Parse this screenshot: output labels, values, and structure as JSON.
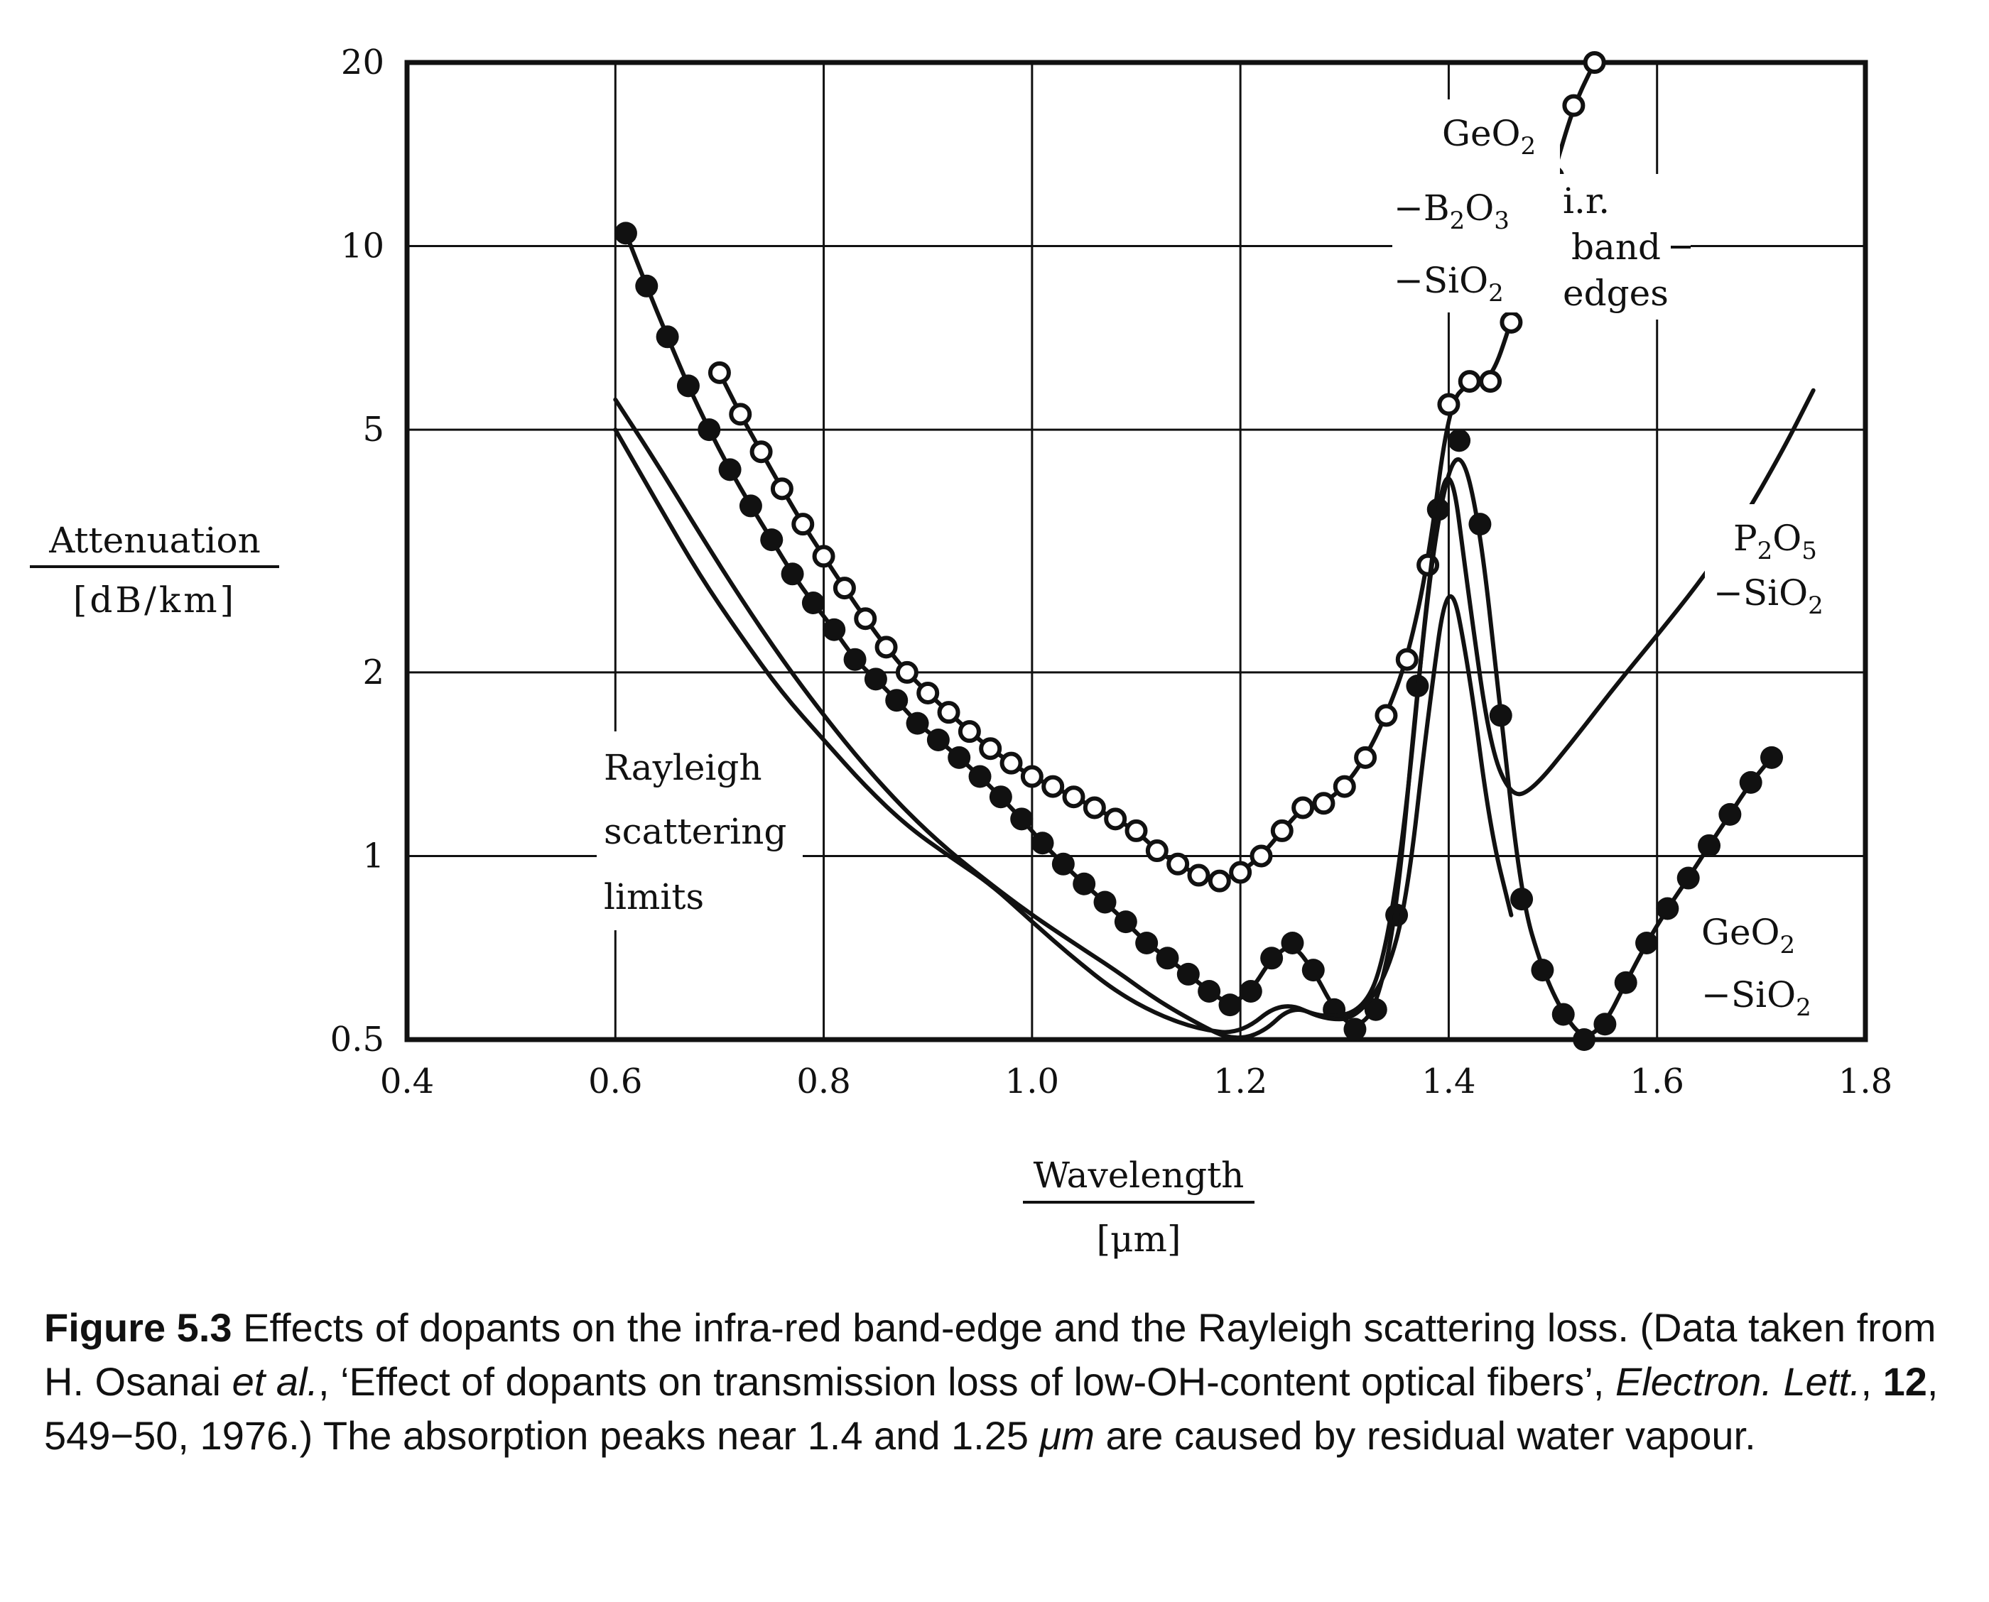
{
  "chart_data": {
    "type": "line",
    "xlabel": "Wavelength",
    "xunit": "[μm]",
    "ylabel": "Attenuation",
    "yunit": "[dB/km]",
    "xlim": [
      0.4,
      1.8
    ],
    "ylim": [
      0.5,
      20
    ],
    "yscale": "log",
    "x_ticks": [
      "0.4",
      "0.6",
      "0.8",
      "1.0",
      "1.2",
      "1.4",
      "1.6",
      "1.8"
    ],
    "y_ticks": [
      "0.5",
      "1",
      "2",
      "5",
      "10",
      "20"
    ],
    "grid": true,
    "annotations": {
      "geo2_b2o3": [
        "GeO",
        "2",
        "−B",
        "2",
        "O",
        "3",
        "−SiO",
        "2"
      ],
      "ir_band": [
        "i.r.",
        "band",
        "edges"
      ],
      "p2o5": [
        "P",
        "2",
        "O",
        "5",
        "−SiO",
        "2"
      ],
      "rayleigh": [
        "Rayleigh",
        "scattering",
        "limits"
      ],
      "geo2_sio2": [
        "GeO",
        "2",
        "−SiO",
        "2"
      ]
    },
    "series": [
      {
        "marker": "open-circle",
        "x": [
          0.7,
          0.72,
          0.74,
          0.76,
          0.78,
          0.8,
          0.82,
          0.84,
          0.86,
          0.88,
          0.9,
          0.92,
          0.94,
          0.96,
          0.98,
          1.0,
          1.02,
          1.04,
          1.06,
          1.08,
          1.1,
          1.12,
          1.14,
          1.16,
          1.18,
          1.2,
          1.22,
          1.24,
          1.26,
          1.28,
          1.3,
          1.32,
          1.34,
          1.36,
          1.38,
          1.4,
          1.42,
          1.44,
          1.46,
          1.48,
          1.5,
          1.52,
          1.54
        ],
        "y": [
          6.2,
          5.3,
          4.6,
          4.0,
          3.5,
          3.1,
          2.75,
          2.45,
          2.2,
          2.0,
          1.85,
          1.72,
          1.6,
          1.5,
          1.42,
          1.35,
          1.3,
          1.25,
          1.2,
          1.15,
          1.1,
          1.02,
          0.97,
          0.93,
          0.91,
          0.94,
          1.0,
          1.1,
          1.2,
          1.22,
          1.3,
          1.45,
          1.7,
          2.1,
          3.0,
          5.5,
          6.0,
          6.0,
          7.5,
          10.0,
          13.0,
          17.0,
          20.0
        ]
      },
      {
        "marker": "filled-circle",
        "x": [
          0.61,
          0.63,
          0.65,
          0.67,
          0.69,
          0.71,
          0.73,
          0.75,
          0.77,
          0.79,
          0.81,
          0.83,
          0.85,
          0.87,
          0.89,
          0.91,
          0.93,
          0.95,
          0.97,
          0.99,
          1.01,
          1.03,
          1.05,
          1.07,
          1.09,
          1.11,
          1.13,
          1.15,
          1.17,
          1.19,
          1.21,
          1.23,
          1.25,
          1.27,
          1.29,
          1.31,
          1.33,
          1.35,
          1.37,
          1.39,
          1.41,
          1.43,
          1.45,
          1.47,
          1.49,
          1.51,
          1.53,
          1.55,
          1.57,
          1.59,
          1.61,
          1.63,
          1.65,
          1.67,
          1.69,
          1.71
        ],
        "y": [
          10.5,
          8.6,
          7.1,
          5.9,
          5.0,
          4.3,
          3.75,
          3.3,
          2.9,
          2.6,
          2.35,
          2.1,
          1.95,
          1.8,
          1.65,
          1.55,
          1.45,
          1.35,
          1.25,
          1.15,
          1.05,
          0.97,
          0.9,
          0.84,
          0.78,
          0.72,
          0.68,
          0.64,
          0.6,
          0.57,
          0.6,
          0.68,
          0.72,
          0.65,
          0.56,
          0.52,
          0.56,
          0.8,
          1.9,
          3.7,
          4.8,
          3.5,
          1.7,
          0.85,
          0.65,
          0.55,
          0.5,
          0.53,
          0.62,
          0.72,
          0.82,
          0.92,
          1.04,
          1.17,
          1.32,
          1.45
        ]
      },
      {
        "marker": "none",
        "x": [
          0.6,
          0.64,
          0.68,
          0.72,
          0.76,
          0.8,
          0.84,
          0.88,
          0.92,
          0.96,
          1.0,
          1.04,
          1.08,
          1.12,
          1.16,
          1.2,
          1.24,
          1.28,
          1.32,
          1.34,
          1.36,
          1.38,
          1.4,
          1.42,
          1.44,
          1.46,
          1.48,
          1.52,
          1.56,
          1.6,
          1.64,
          1.68,
          1.72,
          1.75
        ],
        "y": [
          5.0,
          3.8,
          2.9,
          2.3,
          1.85,
          1.55,
          1.3,
          1.12,
          1.0,
          0.9,
          0.78,
          0.68,
          0.6,
          0.55,
          0.52,
          0.51,
          0.58,
          0.54,
          0.56,
          0.7,
          1.2,
          2.8,
          4.8,
          2.6,
          1.5,
          1.25,
          1.28,
          1.55,
          1.9,
          2.3,
          2.8,
          3.5,
          4.6,
          5.8
        ]
      },
      {
        "marker": "none",
        "x": [
          0.6,
          0.64,
          0.68,
          0.72,
          0.76,
          0.8,
          0.84,
          0.88,
          0.92,
          0.96,
          1.0,
          1.04,
          1.08,
          1.12,
          1.16,
          1.19,
          1.22,
          1.25,
          1.28,
          1.31,
          1.34,
          1.36,
          1.38,
          1.4,
          1.42,
          1.44,
          1.46
        ],
        "y": [
          5.6,
          4.4,
          3.4,
          2.65,
          2.1,
          1.7,
          1.4,
          1.18,
          1.02,
          0.9,
          0.8,
          0.72,
          0.65,
          0.58,
          0.53,
          0.5,
          0.51,
          0.57,
          0.54,
          0.54,
          0.63,
          0.85,
          1.7,
          3.0,
          2.0,
          1.1,
          0.8
        ]
      }
    ]
  },
  "caption": {
    "label": "Figure 5.3",
    "text1": " Effects of dopants on the infra-red band-edge and the Rayleigh scattering loss. (Data taken from H. Osanai ",
    "etal": "et al.",
    "text2": ", ‘Effect of dopants on transmission loss of low-OH-content optical fibers’, ",
    "journal": "Electron. Lett.",
    "text3": ", ",
    "volume": "12",
    "text4": ", 549−50, 1976.) The absorption peaks near 1.4 and 1.25 ",
    "unit": "μm",
    "text5": " are caused by residual water vapour."
  }
}
